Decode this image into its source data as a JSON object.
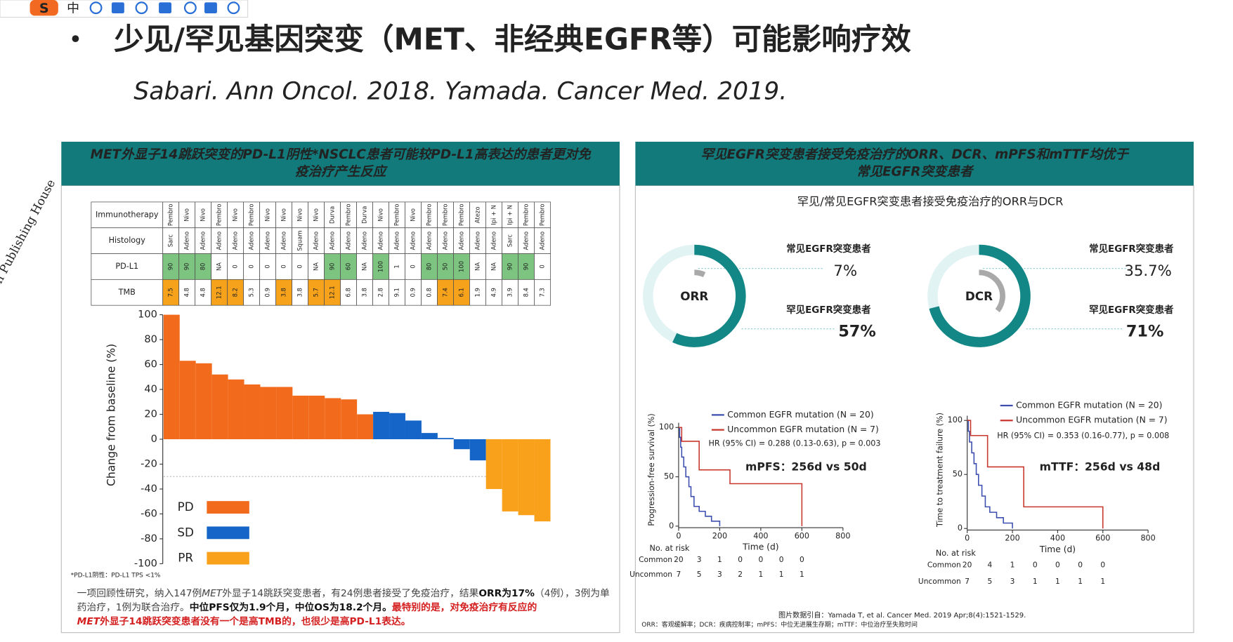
{
  "toolbar": {
    "logo": "S",
    "lang": "中"
  },
  "watermark": "on Publishing House",
  "header": {
    "bullet": "•",
    "title": "少见/罕见基因突变（MET、非经典EGFR等）可能影响疗效",
    "subtitle": "Sabari. Ann Oncol. 2018. Yamada. Cancer Med. 2019."
  },
  "left_panel": {
    "title_lines": [
      "MET外显子14跳跃突变的PD-L1阴性*NSCLC患者可能较PD-L1高表达的患者更对免",
      "疫治疗产生反应"
    ],
    "table": {
      "rows": [
        {
          "label": "Immunotherapy",
          "cells": [
            "Pembro",
            "Nivo",
            "Nivo",
            "Pembro",
            "Nivo",
            "Pembro",
            "Nivo",
            "Nivo",
            "Nivo",
            "Nivo",
            "Durva",
            "Pembro",
            "Durva",
            "Nivo",
            "Pembro",
            "Nivo",
            "Pembro",
            "Pembro",
            "Pembro",
            "Atezo",
            "Ipi + N",
            "Ipi + N",
            "Pembro",
            "Pembro"
          ],
          "cell_colors": [
            null,
            null,
            null,
            null,
            null,
            null,
            null,
            null,
            null,
            null,
            null,
            null,
            null,
            null,
            null,
            null,
            null,
            null,
            null,
            null,
            null,
            null,
            null,
            null
          ]
        },
        {
          "label": "Histology",
          "cells": [
            "Sarc",
            "Adeno",
            "Adeno",
            "Adeno",
            "Adeno",
            "Adeno",
            "Adeno",
            "Adeno",
            "Squam",
            "Adeno",
            "Adeno",
            "Adeno",
            "Adeno",
            "Adeno",
            "Adeno",
            "Adeno",
            "Adeno",
            "Adeno",
            "Adeno",
            "Adeno",
            "Adeno",
            "Sarc",
            "Adeno",
            "Adeno"
          ],
          "cell_colors": [
            null,
            null,
            null,
            null,
            null,
            null,
            null,
            null,
            null,
            null,
            null,
            null,
            null,
            null,
            null,
            null,
            null,
            null,
            null,
            null,
            null,
            null,
            null,
            null
          ]
        },
        {
          "label": "PD-L1",
          "cells": [
            90,
            90,
            80,
            "NA",
            0,
            0,
            0,
            0,
            0,
            "NA",
            90,
            60,
            "NA",
            100,
            1,
            0,
            80,
            50,
            100,
            "NA",
            "NA",
            90,
            90,
            0
          ],
          "cell_colors": [
            "#7cc47f",
            "#7cc47f",
            "#7cc47f",
            null,
            null,
            null,
            null,
            null,
            null,
            null,
            "#7cc47f",
            "#7cc47f",
            null,
            "#7cc47f",
            null,
            null,
            "#7cc47f",
            "#7cc47f",
            "#7cc47f",
            null,
            null,
            "#7cc47f",
            "#7cc47f",
            null
          ]
        },
        {
          "label": "TMB",
          "cells": [
            7.5,
            4.8,
            4.8,
            12.1,
            8.2,
            5.3,
            0.9,
            3.8,
            3.8,
            5.7,
            12.1,
            6.8,
            3.8,
            2.8,
            9.1,
            0.9,
            0.8,
            7.4,
            6.1,
            1.9,
            4.9,
            3.9,
            8.4,
            7.3
          ],
          "cell_colors": [
            "#f7a21b",
            null,
            null,
            "#f7a21b",
            "#f7a21b",
            null,
            null,
            "#f7a21b",
            null,
            "#f7a21b",
            "#f7a21b",
            null,
            null,
            null,
            null,
            null,
            null,
            "#f7a21b",
            "#f7a21b",
            null,
            null,
            null,
            null,
            null
          ]
        }
      ]
    },
    "chart": {
      "type": "bar",
      "ylabel": "Change from baseline (%)",
      "categories": [
        null,
        null,
        null,
        null,
        null,
        null,
        null,
        null,
        null,
        null,
        null,
        null,
        null,
        null,
        null,
        null,
        null,
        null,
        null,
        null,
        null,
        null,
        null,
        null
      ],
      "series": [
        {
          "name": "PD",
          "color": "#f26a1b",
          "values": [
            100,
            63,
            61,
            52,
            48,
            44,
            42,
            42,
            35,
            35,
            33,
            32,
            20,
            null,
            null,
            null,
            null,
            null,
            null,
            null,
            null,
            null,
            null,
            null
          ]
        },
        {
          "name": "SD",
          "color": "#1565c8",
          "values": [
            null,
            null,
            null,
            null,
            null,
            null,
            null,
            null,
            null,
            null,
            null,
            null,
            null,
            22,
            21,
            15,
            5,
            1,
            -8,
            -17,
            null,
            null,
            null,
            null
          ]
        },
        {
          "name": "PR",
          "color": "#f9a11b",
          "values": [
            null,
            null,
            null,
            null,
            null,
            null,
            null,
            null,
            null,
            null,
            null,
            null,
            null,
            null,
            null,
            null,
            null,
            null,
            null,
            null,
            -40,
            -58,
            -61,
            -66
          ]
        }
      ],
      "ylim": [
        -100,
        100
      ],
      "yticks": [
        -100,
        -80,
        -60,
        -40,
        -20,
        0,
        20,
        40,
        60,
        80,
        100
      ],
      "reference_line": -30,
      "legend_position": "lower-left"
    },
    "footnote": "*PD-L1阴性：PD-L1 TPS <1%",
    "note_lines": [
      [
        {
          "text": "一项回顾性研究，纳入147例",
          "style": "plain"
        },
        {
          "text": "MET",
          "style": "italic"
        },
        {
          "text": "外显子14跳跃突变患者，有24例患者接受了免疫治疗，结果",
          "style": "plain"
        },
        {
          "text": "ORR为17%",
          "style": "bold"
        },
        {
          "text": "（4例），3例为单",
          "style": "plain"
        }
      ],
      [
        {
          "text": "药治疗，1例为联合治疗。",
          "style": "plain"
        },
        {
          "text": "中位PFS仅为1.9个月，中位OS为18.2个月。",
          "style": "bold"
        },
        {
          "text": "最特别的是，对免疫治疗有反应的",
          "style": "red"
        }
      ],
      [
        {
          "text": "MET",
          "style": "red-italic"
        },
        {
          "text": "外显子14跳跃突变患者没有一个是高TMB的，也很少是高PD-L1表达。",
          "style": "red"
        }
      ]
    ]
  },
  "right_panel": {
    "title_lines": [
      "罕见EGFR突变患者接受免疫治疗的ORR、DCR、mPFS和mTTF均优于",
      "常见EGFR突变患者"
    ],
    "subtitle": "罕见/常见EGFR突变患者接受免疫治疗的ORR与DCR",
    "donuts": [
      {
        "type": "donut",
        "label": "ORR",
        "series": [
          {
            "name": "常见EGFR突变患者",
            "value": 7,
            "value_label": "7%",
            "color": "#a9a9a9"
          },
          {
            "name": "罕见EGFR突变患者",
            "value": 57,
            "value_label": "57%",
            "color": "#138686"
          }
        ]
      },
      {
        "type": "donut",
        "label": "DCR",
        "series": [
          {
            "name": "常见EGFR突变患者",
            "value": 35.7,
            "value_label": "35.7%",
            "color": "#a9a9a9"
          },
          {
            "name": "罕见EGFR突变患者",
            "value": 71,
            "value_label": "71%",
            "color": "#138686"
          }
        ]
      }
    ],
    "km_charts": [
      {
        "type": "line",
        "ylabel": "Progression-free survival (%)",
        "xlabel": "Time (d)",
        "xlim": [
          0,
          800
        ],
        "xticks": [
          0,
          200,
          400,
          600,
          800
        ],
        "ylim": [
          0,
          100
        ],
        "yticks": [
          0,
          50,
          100
        ],
        "series": [
          {
            "name": "Common EGFR mutation (N = 20)",
            "color": "#3c4fb0",
            "x": [
              0,
              5,
              5,
              10,
              10,
              15,
              15,
              25,
              25,
              35,
              35,
              50,
              50,
              60,
              60,
              75,
              75,
              100,
              100,
              130,
              130,
              160,
              160,
              200,
              200
            ],
            "values": [
              100,
              100,
              90,
              90,
              80,
              80,
              70,
              70,
              60,
              60,
              50,
              50,
              40,
              40,
              30,
              30,
              20,
              20,
              15,
              15,
              10,
              10,
              5,
              5,
              0
            ]
          },
          {
            "name": "Uncommon EGFR mutation (N = 7)",
            "color": "#c8372d",
            "x": [
              0,
              15,
              15,
              100,
              100,
              250,
              250,
              600,
              600
            ],
            "values": [
              100,
              100,
              86,
              86,
              57,
              57,
              43,
              43,
              0
            ]
          }
        ],
        "annotation": "HR (95% CI) = 0.288 (0.13-0.63), p = 0.003",
        "highlight": "mPFS：256d vs 50d",
        "risk_table": {
          "title": "No. at risk",
          "rows": [
            {
              "label": "Common",
              "values": [
                20,
                3,
                1,
                0,
                0,
                0,
                0
              ]
            },
            {
              "label": "Uncommon",
              "values": [
                7,
                5,
                3,
                2,
                1,
                1,
                1
              ]
            }
          ]
        }
      },
      {
        "type": "line",
        "ylabel": "Time to treatment failure (%)",
        "xlabel": "Time (d)",
        "xlim": [
          0,
          800
        ],
        "xticks": [
          0,
          200,
          400,
          600,
          800
        ],
        "ylim": [
          0,
          100
        ],
        "yticks": [
          0,
          50,
          100
        ],
        "series": [
          {
            "name": "Common EGFR mutation (N = 20)",
            "color": "#3c4fb0",
            "x": [
              0,
              5,
              5,
              10,
              10,
              20,
              20,
              30,
              30,
              40,
              40,
              50,
              50,
              65,
              65,
              80,
              80,
              100,
              100,
              130,
              130,
              160,
              160,
              200,
              200
            ],
            "values": [
              100,
              100,
              90,
              90,
              80,
              80,
              70,
              70,
              60,
              60,
              50,
              50,
              40,
              40,
              30,
              30,
              20,
              20,
              15,
              15,
              10,
              10,
              5,
              5,
              0
            ]
          },
          {
            "name": "Uncommon EGFR mutation (N = 7)",
            "color": "#c8372d",
            "x": [
              0,
              15,
              15,
              90,
              90,
              250,
              250,
              600,
              600
            ],
            "values": [
              100,
              100,
              86,
              86,
              57,
              57,
              20,
              20,
              0
            ]
          }
        ],
        "annotation": "HR (95% CI) = 0.353 (0.16-0.77), p = 0.008",
        "highlight": "mTTF：256d vs 48d",
        "risk_table": {
          "title": "No. at risk",
          "rows": [
            {
              "label": "Common",
              "values": [
                20,
                4,
                1,
                0,
                0,
                0,
                0
              ]
            },
            {
              "label": "Uncommon",
              "values": [
                7,
                5,
                3,
                1,
                1,
                1,
                1
              ]
            }
          ]
        }
      }
    ],
    "source": "图片数据引自：Yamada T, et al. Cancer Med. 2019 Apr;8(4):1521-1529.",
    "abbreviations": "ORR：客观缓解率；DCR：疾病控制率；mPFS：中位无进展生存期；mTTF：中位治疗至失败时间"
  }
}
